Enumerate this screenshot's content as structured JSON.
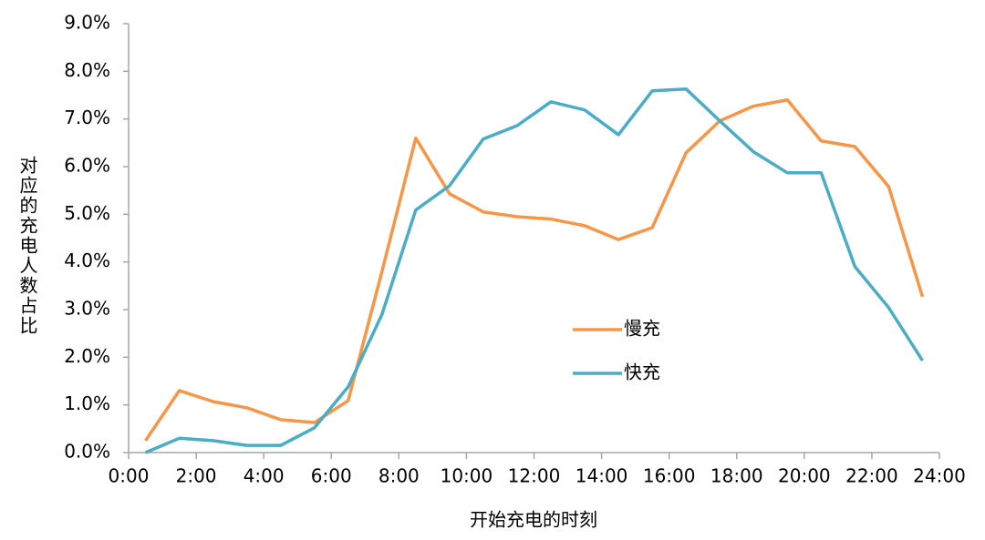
{
  "chart_data": {
    "type": "line",
    "x_label": "开始充电的时刻",
    "y_label": "对应的充电人数占比",
    "x": [
      0.5,
      1.5,
      2.5,
      3.5,
      4.5,
      5.5,
      6.5,
      7.5,
      8.5,
      9.5,
      10.5,
      11.5,
      12.5,
      13.5,
      14.5,
      15.5,
      16.5,
      17.5,
      18.5,
      19.5,
      20.5,
      21.5,
      22.5,
      23.5
    ],
    "series": [
      {
        "name": "慢充",
        "color": "#f79646",
        "values": [
          0.25,
          1.3,
          1.07,
          0.94,
          0.69,
          0.63,
          1.09,
          3.8,
          6.6,
          5.43,
          5.05,
          4.95,
          4.9,
          4.76,
          4.47,
          4.72,
          6.29,
          6.96,
          7.27,
          7.4,
          6.54,
          6.42,
          5.58,
          3.27
        ]
      },
      {
        "name": "快充",
        "color": "#4bacc6",
        "values": [
          0,
          0.3,
          0.25,
          0.15,
          0.15,
          0.52,
          1.38,
          2.9,
          5.09,
          5.6,
          6.58,
          6.86,
          7.36,
          7.19,
          6.67,
          7.59,
          7.63,
          6.96,
          6.31,
          5.87,
          5.87,
          3.9,
          3.04,
          1.93
        ]
      }
    ],
    "xlim": [
      0,
      24
    ],
    "xticks": [
      {
        "value": 0,
        "label": "0:00"
      },
      {
        "value": 2,
        "label": "2:00"
      },
      {
        "value": 4,
        "label": "4:00"
      },
      {
        "value": 6,
        "label": "6:00"
      },
      {
        "value": 8,
        "label": "8:00"
      },
      {
        "value": 10,
        "label": "10:00"
      },
      {
        "value": 12,
        "label": "12:00"
      },
      {
        "value": 14,
        "label": "14:00"
      },
      {
        "value": 16,
        "label": "16:00"
      },
      {
        "value": 18,
        "label": "18:00"
      },
      {
        "value": 20,
        "label": "20:00"
      },
      {
        "value": 22,
        "label": "22:00"
      },
      {
        "value": 24,
        "label": "24:00"
      }
    ],
    "ylim": [
      0,
      9
    ],
    "yticks": [
      {
        "value": 0,
        "label": "0.0%"
      },
      {
        "value": 1,
        "label": "1.0%"
      },
      {
        "value": 2,
        "label": "2.0%"
      },
      {
        "value": 3,
        "label": "3.0%"
      },
      {
        "value": 4,
        "label": "4.0%"
      },
      {
        "value": 5,
        "label": "5.0%"
      },
      {
        "value": 6,
        "label": "6.0%"
      },
      {
        "value": 7,
        "label": "7.0%"
      },
      {
        "value": 8,
        "label": "8.0%"
      },
      {
        "value": 9,
        "label": "9.0%"
      }
    ],
    "grid": false,
    "legend": "center"
  }
}
